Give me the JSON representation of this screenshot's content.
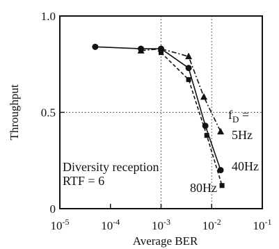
{
  "chart_data": {
    "type": "line",
    "xlabel": "Average BER",
    "ylabel": "Throughput",
    "xscale": "log",
    "xlim": [
      1e-05,
      0.1
    ],
    "ylim": [
      0,
      1.0
    ],
    "x_ticks": [
      {
        "value": 1e-05,
        "base": "10",
        "exp": "-5"
      },
      {
        "value": 0.0001,
        "base": "10",
        "exp": "-4"
      },
      {
        "value": 0.001,
        "base": "10",
        "exp": "-3"
      },
      {
        "value": 0.01,
        "base": "10",
        "exp": "-2"
      },
      {
        "value": 0.1,
        "base": "10",
        "exp": "-1"
      }
    ],
    "y_ticks": [
      {
        "value": 0,
        "label": "0"
      },
      {
        "value": 0.5,
        "label": "0.5"
      },
      {
        "value": 1.0,
        "label": "1.0"
      }
    ],
    "grid": "dotted, at x = 10^-3, 10^-2 and y = 0.5",
    "series": [
      {
        "name": "5Hz",
        "marker": "triangle",
        "line": "dash-dot",
        "color": "#111111",
        "x": [
          0.0004,
          0.001,
          0.0035,
          0.007,
          0.015
        ],
        "y": [
          0.82,
          0.83,
          0.79,
          0.58,
          0.4
        ]
      },
      {
        "name": "40Hz",
        "marker": "circle",
        "line": "solid",
        "color": "#111111",
        "x": [
          5e-05,
          0.0004,
          0.001,
          0.0035,
          0.0075,
          0.015
        ],
        "y": [
          0.84,
          0.83,
          0.83,
          0.73,
          0.43,
          0.2
        ]
      },
      {
        "name": "80Hz",
        "marker": "square",
        "line": "dashed",
        "color": "#111111",
        "x": [
          0.001,
          0.0035,
          0.008,
          0.016
        ],
        "y": [
          0.81,
          0.67,
          0.38,
          0.12
        ]
      }
    ],
    "annotations": {
      "fd_base": "f",
      "fd_sub": "D",
      "fd_eq": " =",
      "condition_line1": "Diversity reception",
      "condition_line2": "RTF = 6"
    }
  }
}
